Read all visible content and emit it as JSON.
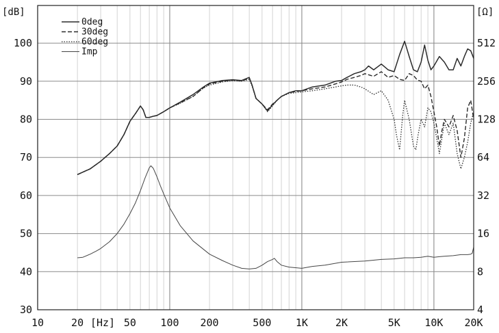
{
  "chart_data": {
    "type": "line",
    "title": "",
    "xlabel": "",
    "x_unit_label": "[Hz]",
    "ylabel_left": "[dB]",
    "ylabel_right": "[Ω]",
    "xscale": "log",
    "xlim": [
      10,
      20000
    ],
    "ylim": [
      30,
      105
    ],
    "y_right_scale": "log2",
    "y_right_lim": [
      4,
      512
    ],
    "grid": true,
    "legend_position": "top-left",
    "x_ticks": [
      {
        "value": 10,
        "label": "10"
      },
      {
        "value": 20,
        "label": "20"
      },
      {
        "value": 50,
        "label": "50"
      },
      {
        "value": 100,
        "label": "100"
      },
      {
        "value": 200,
        "label": "200"
      },
      {
        "value": 500,
        "label": "500"
      },
      {
        "value": 1000,
        "label": "1K"
      },
      {
        "value": 2000,
        "label": "2K"
      },
      {
        "value": 5000,
        "label": "5K"
      },
      {
        "value": 10000,
        "label": "10K"
      },
      {
        "value": 20000,
        "label": "20K"
      }
    ],
    "y_ticks_left": [
      30,
      40,
      50,
      60,
      70,
      80,
      90,
      100
    ],
    "y_ticks_right": [
      4,
      8,
      16,
      32,
      64,
      128,
      256,
      512
    ],
    "series": [
      {
        "name": "0deg",
        "style": "solid",
        "axis": "left",
        "x": [
          20,
          25,
          30,
          35,
          40,
          45,
          50,
          55,
          60,
          63,
          66,
          70,
          75,
          80,
          90,
          100,
          120,
          150,
          180,
          200,
          250,
          300,
          350,
          400,
          420,
          450,
          500,
          550,
          600,
          650,
          700,
          800,
          900,
          1000,
          1200,
          1500,
          1800,
          2000,
          2200,
          2500,
          2800,
          3000,
          3200,
          3500,
          4000,
          4500,
          5000,
          5500,
          6000,
          6500,
          7000,
          7500,
          8000,
          8500,
          9000,
          9500,
          10000,
          11000,
          12000,
          13000,
          14000,
          15000,
          16000,
          17000,
          18000,
          19000,
          20000
        ],
        "y": [
          65.5,
          67,
          69,
          71,
          73,
          76,
          79.5,
          81.5,
          83.5,
          82.5,
          80.5,
          80.5,
          80.8,
          81,
          82,
          83,
          84.5,
          86.5,
          88.5,
          89.5,
          90.2,
          90.4,
          90.2,
          91,
          89,
          85.5,
          84,
          82.2,
          83.8,
          85,
          86,
          87,
          87.5,
          87.5,
          88.5,
          89,
          90,
          90.2,
          91,
          92,
          92.5,
          93,
          94,
          93,
          94.5,
          93,
          92.5,
          97,
          100.5,
          96.5,
          93,
          92.5,
          95,
          99.5,
          95.5,
          93,
          94,
          96.5,
          95,
          93,
          93,
          96,
          94,
          96.5,
          98.5,
          98,
          96
        ]
      },
      {
        "name": "30deg",
        "style": "dashed",
        "axis": "left",
        "x": [
          20,
          25,
          30,
          35,
          40,
          45,
          50,
          55,
          60,
          63,
          66,
          70,
          75,
          80,
          90,
          100,
          120,
          150,
          180,
          200,
          250,
          300,
          350,
          400,
          420,
          450,
          500,
          550,
          600,
          650,
          700,
          800,
          900,
          1000,
          1200,
          1500,
          1800,
          2000,
          2200,
          2500,
          2800,
          3000,
          3500,
          4000,
          4500,
          5000,
          5500,
          6000,
          6500,
          7000,
          7500,
          8000,
          8500,
          9000,
          9500,
          10000,
          10500,
          11000,
          11500,
          12000,
          13000,
          14000,
          15000,
          16000,
          17000,
          18000,
          19000,
          20000
        ],
        "y": [
          65.5,
          67,
          69,
          71,
          73,
          76,
          79.5,
          81.5,
          83.5,
          82.5,
          80.5,
          80.5,
          80.8,
          81,
          82,
          83,
          84.3,
          86,
          88.3,
          89.3,
          90,
          90.3,
          90.1,
          90.8,
          89,
          85.5,
          84,
          82.5,
          84,
          85,
          86,
          87,
          87.3,
          87.5,
          88,
          88.5,
          89.3,
          89.8,
          90.5,
          91,
          91.5,
          92,
          91.3,
          92.5,
          91,
          91.5,
          90.5,
          90.2,
          92,
          91.5,
          90.3,
          90,
          88,
          89,
          86,
          82,
          78,
          73,
          77,
          80,
          78,
          81,
          77,
          70,
          75,
          83,
          85,
          80
        ]
      },
      {
        "name": "60deg",
        "style": "dotted",
        "axis": "left",
        "x": [
          20,
          25,
          30,
          35,
          40,
          45,
          50,
          55,
          60,
          63,
          66,
          70,
          75,
          80,
          90,
          100,
          120,
          150,
          180,
          200,
          250,
          300,
          350,
          400,
          420,
          450,
          500,
          550,
          600,
          650,
          700,
          800,
          900,
          1000,
          1200,
          1500,
          1800,
          2000,
          2200,
          2500,
          2800,
          3000,
          3500,
          4000,
          4500,
          5000,
          5200,
          5500,
          5800,
          6000,
          6500,
          7000,
          7300,
          7600,
          8000,
          8500,
          9000,
          9500,
          10000,
          10500,
          11000,
          11500,
          12000,
          13000,
          14000,
          15000,
          16000,
          17000,
          18000,
          19000,
          20000
        ],
        "y": [
          65.5,
          67,
          69,
          71,
          73,
          76,
          79.5,
          81.5,
          83.5,
          82.5,
          80.5,
          80.5,
          80.8,
          81,
          82,
          83,
          84.2,
          86,
          88.2,
          89,
          89.8,
          90.2,
          90,
          90.5,
          88.8,
          85.5,
          84,
          82,
          83.5,
          85,
          86,
          86.8,
          87,
          87.2,
          87.5,
          88,
          88.5,
          88.8,
          89,
          89,
          88.5,
          88,
          86.5,
          87.5,
          85,
          80,
          76,
          72,
          81,
          85,
          80,
          73,
          72,
          76,
          80,
          78,
          83,
          82,
          79,
          75,
          71,
          75,
          79,
          76,
          79,
          71,
          67,
          70,
          74,
          79,
          82
        ]
      },
      {
        "name": "Imp",
        "style": "solid-thin",
        "axis": "right",
        "x": [
          20,
          22,
          25,
          28,
          30,
          35,
          40,
          45,
          50,
          55,
          60,
          65,
          70,
          72,
          75,
          80,
          85,
          90,
          100,
          120,
          150,
          200,
          250,
          300,
          350,
          400,
          450,
          500,
          550,
          600,
          620,
          650,
          700,
          800,
          1000,
          1200,
          1500,
          2000,
          3000,
          4000,
          5000,
          6000,
          7000,
          8000,
          9000,
          10000,
          11000,
          12000,
          14000,
          16000,
          18000,
          19000,
          19500,
          20000
        ],
        "y": [
          10.3,
          10.4,
          11.0,
          11.7,
          12.2,
          13.8,
          16.0,
          19.0,
          23.0,
          28.0,
          35.0,
          44.0,
          53.0,
          55.0,
          52.5,
          45.0,
          38.0,
          33.0,
          25.5,
          18.5,
          14.0,
          11.0,
          9.8,
          9.0,
          8.5,
          8.4,
          8.5,
          9.0,
          9.6,
          10.0,
          10.2,
          9.6,
          9.0,
          8.7,
          8.5,
          8.8,
          9.0,
          9.5,
          9.7,
          10.0,
          10.1,
          10.3,
          10.3,
          10.4,
          10.6,
          10.4,
          10.5,
          10.6,
          10.7,
          10.9,
          10.9,
          11.0,
          11.2,
          12.5
        ]
      }
    ]
  }
}
